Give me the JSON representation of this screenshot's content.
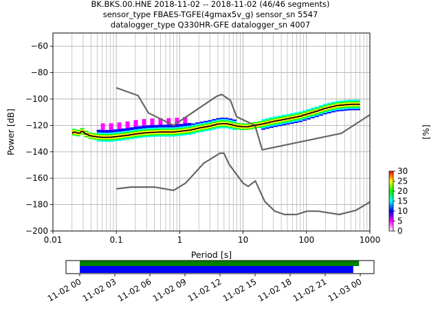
{
  "title_lines": [
    "BK.BKS.00.HNE   2018-11-02 -- 2018-11-02  (46/46 segments)",
    "sensor_type FBAES-TGFE(4gmax5v_g) sensor_sn 5547",
    "datalogger_type Q330HR-GFE datalogger_sn 4007"
  ],
  "colors": {
    "model_lines": "#666666",
    "mode_line": "#000000",
    "bar_top": "#007f00",
    "bar_bottom": "#0000ff",
    "pdf_colormap": [
      "#ffffff",
      "#ff00ff",
      "#0000ff",
      "#00ffff",
      "#00ff00",
      "#ffff00",
      "#ff0000"
    ]
  },
  "chart_data": {
    "type": "heatmap",
    "xlabel": "Period [s]",
    "ylabel": "Power [dB]",
    "xscale": "log",
    "xlim": [
      0.01,
      1000
    ],
    "ylim": [
      -200,
      -50
    ],
    "grid": true,
    "x_ticks": [
      0.01,
      0.1,
      1,
      10,
      100,
      1000
    ],
    "x_tick_labels": [
      "0.01",
      "0.1",
      "1",
      "10",
      "100",
      "1000"
    ],
    "y_ticks": [
      -200,
      -180,
      -160,
      -140,
      -120,
      -100,
      -80,
      -60
    ],
    "y_tick_labels": [
      "−200",
      "−180",
      "−160",
      "−140",
      "−120",
      "−100",
      "−80",
      "−60"
    ],
    "colorbar": {
      "label": "[%]",
      "range": [
        0,
        30
      ],
      "ticks": [
        0,
        5,
        10,
        15,
        20,
        25,
        30
      ],
      "tick_labels": [
        "0",
        "5",
        "10",
        "15",
        "20",
        "25",
        "30"
      ]
    },
    "series": [
      {
        "role": "high_noise_model",
        "x": [
          0.1,
          0.22,
          0.32,
          0.8,
          3.8,
          4.6,
          6.3,
          7.9,
          15.4,
          20.0,
          354.8,
          1000
        ],
        "y": [
          -91.5,
          -97.4,
          -110.5,
          -120.0,
          -98.0,
          -96.5,
          -101.0,
          -113.5,
          -120.0,
          -138.5,
          -126.0,
          -112.0
        ]
      },
      {
        "role": "low_noise_model",
        "x": [
          0.1,
          0.17,
          0.4,
          0.8,
          1.24,
          2.4,
          4.3,
          5.0,
          6.0,
          10.0,
          12.0,
          15.6,
          21.9,
          31.6,
          45.0,
          70.0,
          101.0,
          154.0,
          328.0,
          600.0,
          1000
        ],
        "y": [
          -168.0,
          -166.7,
          -166.7,
          -169.2,
          -163.7,
          -148.6,
          -141.1,
          -141.1,
          -149.4,
          -163.8,
          -166.2,
          -162.1,
          -177.5,
          -185.0,
          -187.5,
          -187.5,
          -185.0,
          -185.0,
          -187.5,
          -184.4,
          -178.0
        ]
      },
      {
        "role": "mode",
        "x": [
          0.02,
          0.022,
          0.026,
          0.029,
          0.031,
          0.035,
          0.04,
          0.05,
          0.06,
          0.08,
          0.1,
          0.15,
          0.2,
          0.3,
          0.5,
          0.8,
          1.0,
          1.5,
          2.0,
          3.0,
          4.0,
          5.0,
          6.0,
          8.0,
          10.0,
          12.0,
          15.0,
          20.0,
          30.0,
          50.0,
          80.0,
          100.0,
          150.0,
          200.0,
          300.0,
          500.0,
          700.0
        ],
        "y": [
          -126.0,
          -125.0,
          -126.0,
          -124.5,
          -125.5,
          -127.0,
          -128.0,
          -128.7,
          -129.0,
          -129.0,
          -128.5,
          -127.5,
          -126.5,
          -125.5,
          -125.0,
          -125.0,
          -124.5,
          -123.5,
          -122.0,
          -120.5,
          -119.0,
          -118.5,
          -119.0,
          -120.5,
          -121.0,
          -121.0,
          -120.0,
          -119.0,
          -117.0,
          -115.0,
          -113.0,
          -111.5,
          -109.0,
          -107.0,
          -105.0,
          -104.0,
          -104.0
        ]
      }
    ]
  },
  "time_bar": {
    "tick_labels": [
      "11-02 00",
      "11-02 03",
      "11-02 06",
      "11-02 09",
      "11-02 12",
      "11-02 15",
      "11-02 18",
      "11-02 21",
      "11-03 00"
    ],
    "span_hours": 24,
    "top_bar_hours": [
      0,
      23.9
    ],
    "bottom_bar_hours": [
      0,
      23.4
    ]
  }
}
